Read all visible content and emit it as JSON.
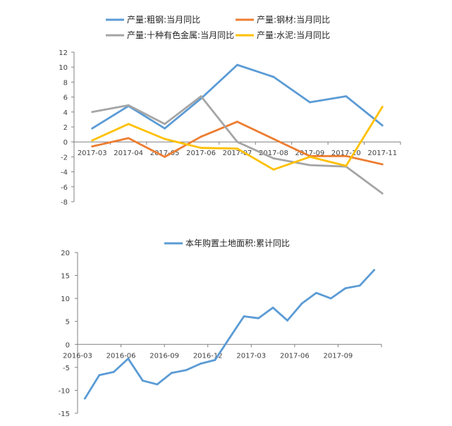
{
  "chart_data": [
    {
      "type": "line",
      "title": "",
      "xlabel": "",
      "ylabel": "",
      "ylim": [
        -8,
        12
      ],
      "yticks": [
        12,
        10,
        8,
        6,
        4,
        2,
        0,
        -2,
        -4,
        -6,
        -8
      ],
      "categories": [
        "2017-03",
        "2017-04",
        "2017-05",
        "2017-06",
        "2017-07",
        "2017-08",
        "2017-09",
        "2017-10",
        "2017-11"
      ],
      "legend_position": "top",
      "series": [
        {
          "name": "产量:粗钢:当月同比",
          "color": "#5B9BD5",
          "values": [
            1.8,
            4.8,
            1.8,
            5.8,
            10.3,
            8.7,
            5.3,
            6.1,
            2.2
          ]
        },
        {
          "name": "产量:钢材:当月同比",
          "color": "#ED7D31",
          "values": [
            -0.6,
            0.5,
            -2.0,
            0.7,
            2.7,
            0.4,
            -1.9,
            -1.9,
            -3.0
          ]
        },
        {
          "name": "产量:十种有色金属:当月同比",
          "color": "#A5A5A5",
          "values": [
            4.0,
            4.9,
            2.4,
            6.1,
            0.0,
            -2.2,
            -3.1,
            -3.3,
            -6.9
          ]
        },
        {
          "name": "产量:水泥:当月同比",
          "color": "#FFC000",
          "values": [
            0.2,
            2.4,
            0.4,
            -0.8,
            -0.9,
            -3.7,
            -2.0,
            -3.2,
            4.7
          ]
        }
      ]
    },
    {
      "type": "line",
      "title": "",
      "xlabel": "",
      "ylabel": "",
      "ylim": [
        -15,
        20
      ],
      "yticks": [
        20,
        15,
        10,
        5,
        0,
        -5,
        -10,
        -15
      ],
      "x_tick_labels": [
        "2016-03",
        "2016-06",
        "2016-09",
        "2016-12",
        "2017-03",
        "2017-06",
        "2017-09"
      ],
      "legend_position": "top",
      "x": [
        "2016-03",
        "2016-04",
        "2016-05",
        "2016-06",
        "2016-07",
        "2016-08",
        "2016-09",
        "2016-10",
        "2016-11",
        "2016-12",
        "2017-01",
        "2017-02",
        "2017-03",
        "2017-04",
        "2017-05",
        "2017-06",
        "2017-07",
        "2017-08",
        "2017-09",
        "2017-10",
        "2017-11"
      ],
      "series": [
        {
          "name": "本年购置土地面积:累计同比",
          "color": "#5B9BD5",
          "values": [
            -11.8,
            -6.7,
            -6.0,
            -3.1,
            -7.9,
            -8.7,
            -6.2,
            -5.6,
            -4.2,
            -3.4,
            1.4,
            6.1,
            5.7,
            8.0,
            5.2,
            8.9,
            11.2,
            10.0,
            12.2,
            12.8,
            16.2
          ]
        }
      ]
    }
  ]
}
